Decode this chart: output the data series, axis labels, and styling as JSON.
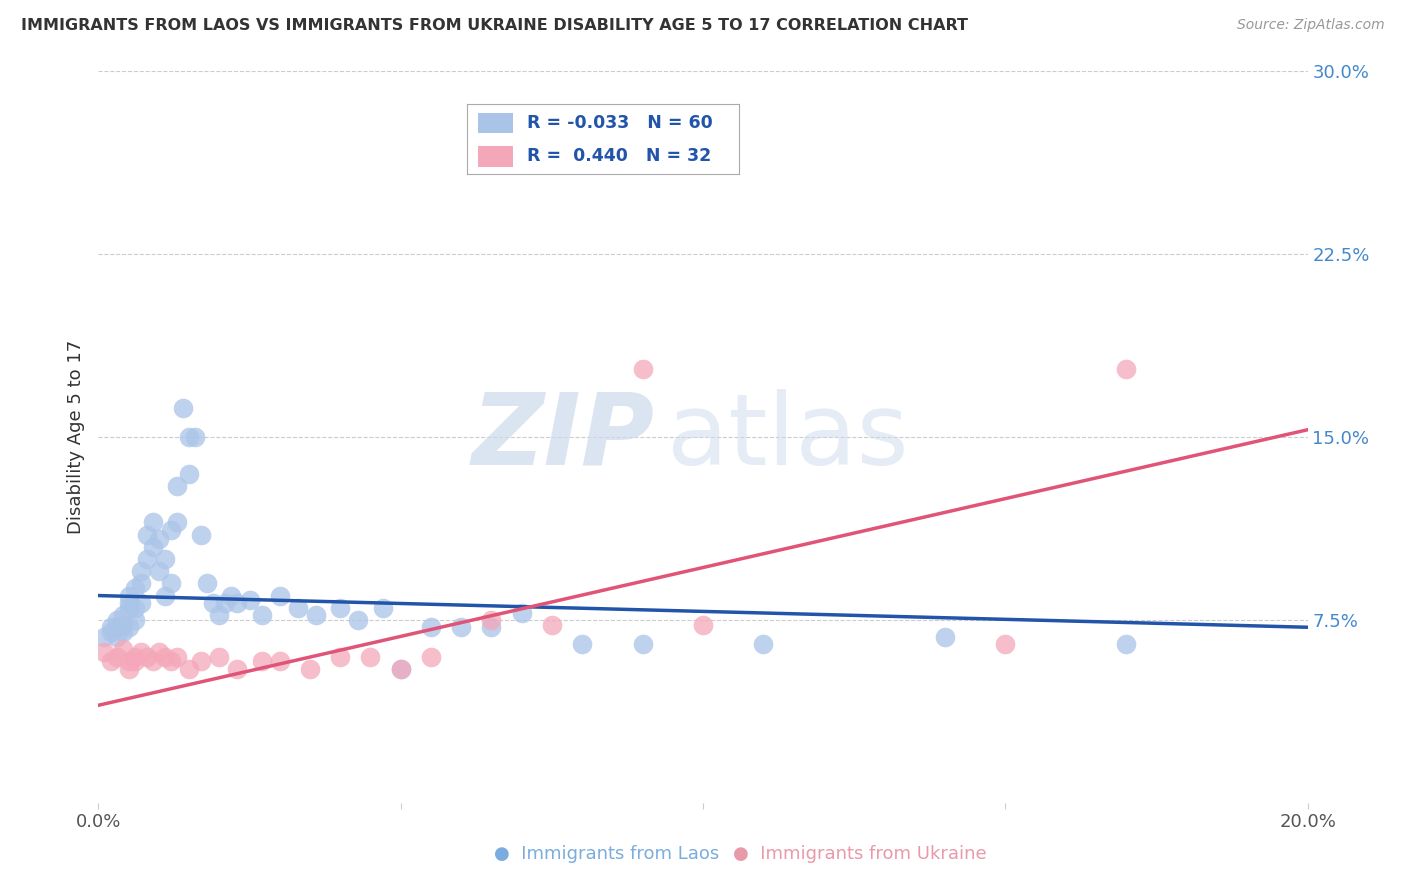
{
  "title": "IMMIGRANTS FROM LAOS VS IMMIGRANTS FROM UKRAINE DISABILITY AGE 5 TO 17 CORRELATION CHART",
  "source": "Source: ZipAtlas.com",
  "ylabel": "Disability Age 5 to 17",
  "xlim": [
    0.0,
    0.2
  ],
  "ylim": [
    0.0,
    0.3
  ],
  "grid_color": "#cccccc",
  "watermark_zip": "ZIP",
  "watermark_atlas": "atlas",
  "laos_color": "#aac4e8",
  "ukraine_color": "#f4a7b9",
  "laos_line_color": "#2255aa",
  "ukraine_line_color": "#e05577",
  "laos_R": -0.033,
  "laos_N": 60,
  "ukraine_R": 0.44,
  "ukraine_N": 32,
  "laos_line_y0": 0.085,
  "laos_line_y1": 0.072,
  "ukraine_line_y0": 0.04,
  "ukraine_line_y1": 0.153,
  "laos_scatter_x": [
    0.001,
    0.002,
    0.002,
    0.003,
    0.003,
    0.003,
    0.004,
    0.004,
    0.004,
    0.005,
    0.005,
    0.005,
    0.005,
    0.006,
    0.006,
    0.006,
    0.007,
    0.007,
    0.007,
    0.008,
    0.008,
    0.009,
    0.009,
    0.01,
    0.01,
    0.011,
    0.011,
    0.012,
    0.012,
    0.013,
    0.013,
    0.014,
    0.015,
    0.015,
    0.016,
    0.017,
    0.018,
    0.019,
    0.02,
    0.021,
    0.022,
    0.023,
    0.025,
    0.027,
    0.03,
    0.033,
    0.036,
    0.04,
    0.043,
    0.047,
    0.05,
    0.055,
    0.06,
    0.065,
    0.07,
    0.08,
    0.09,
    0.11,
    0.14,
    0.17
  ],
  "laos_scatter_y": [
    0.068,
    0.07,
    0.072,
    0.068,
    0.072,
    0.075,
    0.07,
    0.073,
    0.077,
    0.072,
    0.08,
    0.082,
    0.085,
    0.075,
    0.08,
    0.088,
    0.082,
    0.09,
    0.095,
    0.1,
    0.11,
    0.105,
    0.115,
    0.095,
    0.108,
    0.085,
    0.1,
    0.09,
    0.112,
    0.115,
    0.13,
    0.162,
    0.15,
    0.135,
    0.15,
    0.11,
    0.09,
    0.082,
    0.077,
    0.082,
    0.085,
    0.082,
    0.083,
    0.077,
    0.085,
    0.08,
    0.077,
    0.08,
    0.075,
    0.08,
    0.055,
    0.072,
    0.072,
    0.072,
    0.078,
    0.065,
    0.065,
    0.065,
    0.068,
    0.065
  ],
  "ukraine_scatter_x": [
    0.001,
    0.002,
    0.003,
    0.004,
    0.005,
    0.005,
    0.006,
    0.006,
    0.007,
    0.008,
    0.009,
    0.01,
    0.011,
    0.012,
    0.013,
    0.015,
    0.017,
    0.02,
    0.023,
    0.027,
    0.03,
    0.035,
    0.04,
    0.045,
    0.05,
    0.055,
    0.065,
    0.075,
    0.09,
    0.1,
    0.15,
    0.17
  ],
  "ukraine_scatter_y": [
    0.062,
    0.058,
    0.06,
    0.063,
    0.055,
    0.058,
    0.06,
    0.058,
    0.062,
    0.06,
    0.058,
    0.062,
    0.06,
    0.058,
    0.06,
    0.055,
    0.058,
    0.06,
    0.055,
    0.058,
    0.058,
    0.055,
    0.06,
    0.06,
    0.055,
    0.06,
    0.075,
    0.073,
    0.178,
    0.073,
    0.065,
    0.178
  ]
}
